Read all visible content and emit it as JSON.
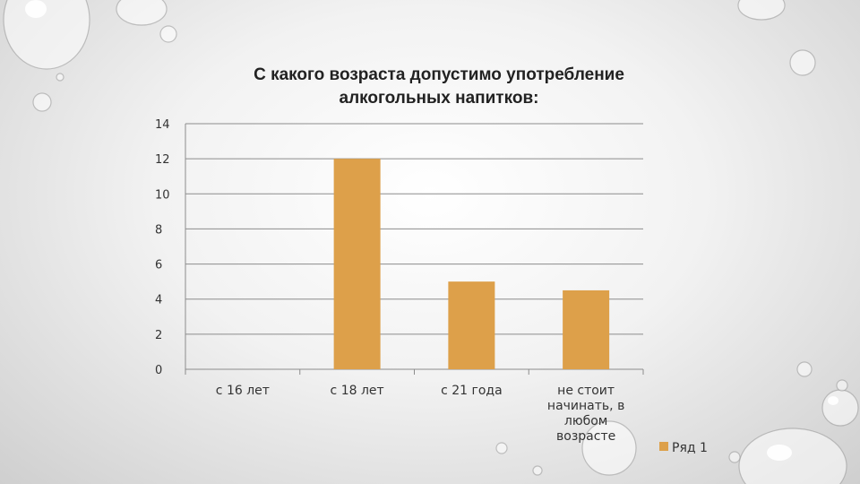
{
  "chart_data": {
    "type": "bar",
    "title_lines": [
      "С какого возраста допустимо употребление",
      "алкогольных напитков:"
    ],
    "categories": [
      "с 16 лет",
      "с 18 лет",
      "с 21 года",
      "не стоит начинать, в любом возрасте"
    ],
    "category_lines": [
      [
        "с 16 лет"
      ],
      [
        "с 18 лет"
      ],
      [
        "с 21 года"
      ],
      [
        "не стоит",
        "начинать, в",
        "любом",
        "возрасте"
      ]
    ],
    "series": [
      {
        "name": "Ряд 1",
        "values": [
          0,
          12,
          5,
          4.5
        ],
        "color": "#DDA04A"
      }
    ],
    "yticks": [
      0,
      2,
      4,
      6,
      8,
      10,
      12,
      14
    ],
    "ylim": [
      0,
      14
    ],
    "grid": true,
    "legend_position": "right"
  }
}
